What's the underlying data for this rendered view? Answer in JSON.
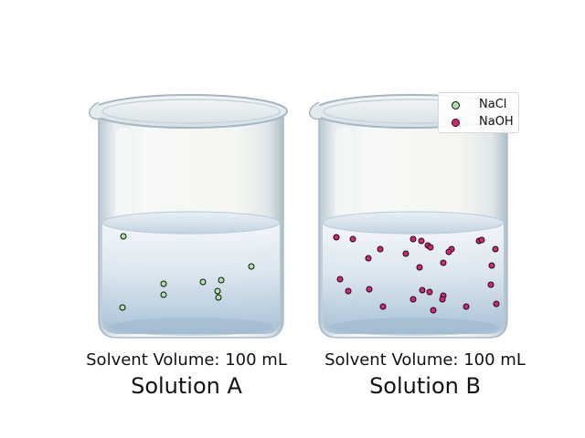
{
  "beakers": [
    {
      "name": "Solution A",
      "volume_label": "Solvent Volume: 100 mL",
      "solute": "NaCl",
      "particle_color": "#a8e6a1",
      "particle_count": 10
    },
    {
      "name": "Solution B",
      "volume_label": "Solvent Volume: 100 mL",
      "solute": "NaOH",
      "particle_color": "#e0217a",
      "particle_count": 36
    }
  ],
  "legend": {
    "items": [
      {
        "label": "NaCl",
        "color": "#a8e6a1"
      },
      {
        "label": "NaOH",
        "color": "#e0217a"
      }
    ]
  },
  "colors": {
    "glass": "#dfe6ea",
    "glass_edge": "#aabcc7",
    "liquid_top": "#f2f7fb",
    "liquid_bottom": "#a9c1d6",
    "marker_edge": "#111111"
  }
}
